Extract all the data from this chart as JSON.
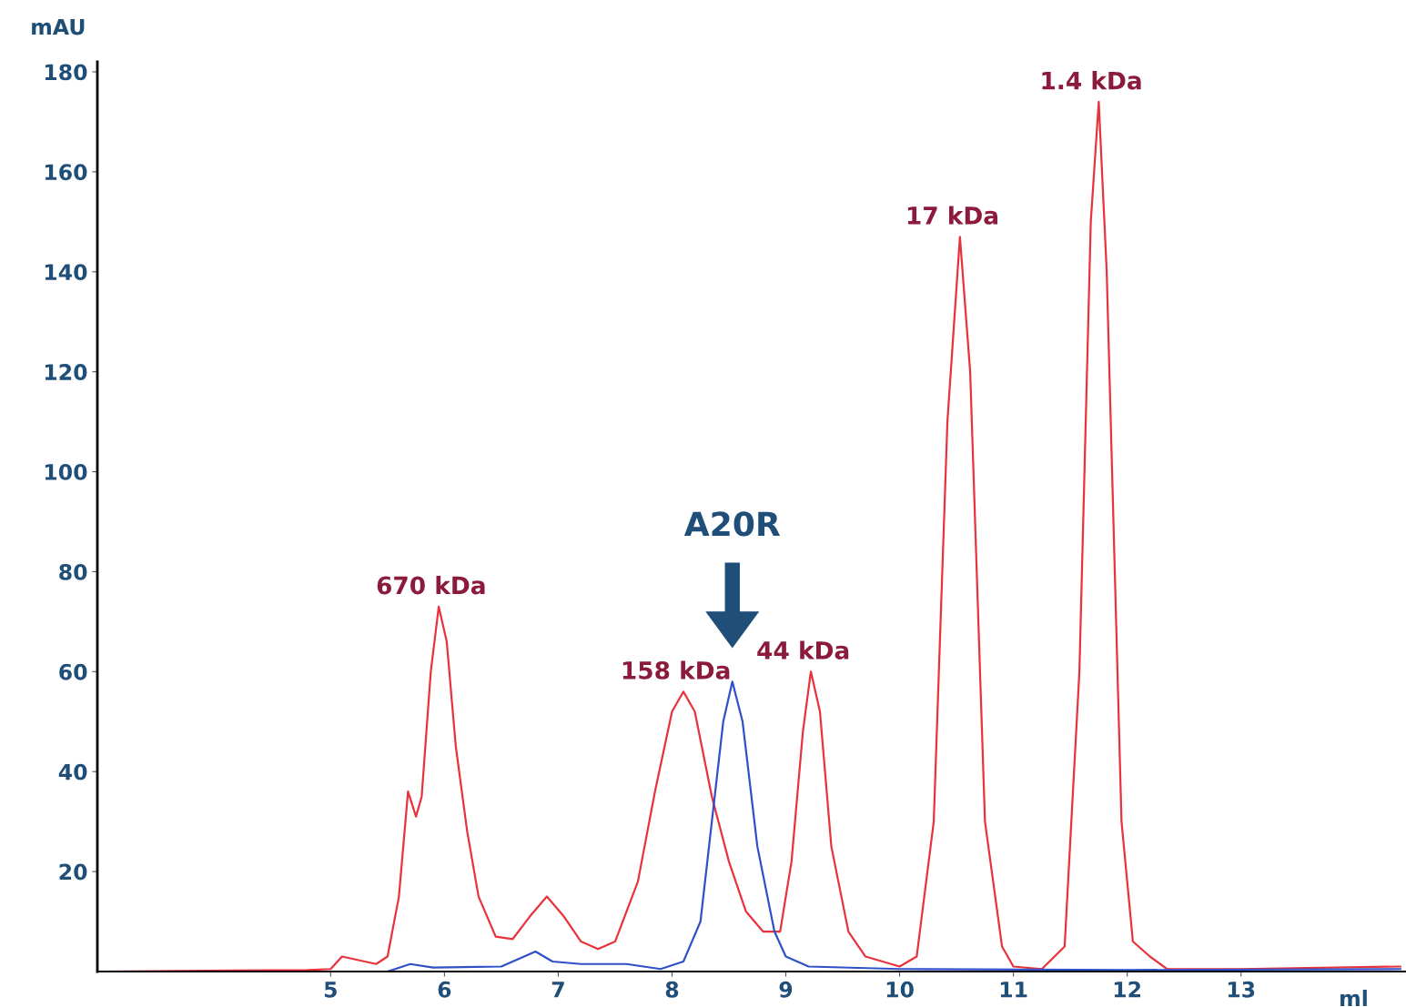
{
  "chart_data": {
    "type": "line",
    "xlabel": "ml",
    "ylabel": "mAU",
    "xlim": [
      2.95,
      14.45
    ],
    "xticks": [
      5,
      6,
      7,
      8,
      9,
      10,
      11,
      12,
      13
    ],
    "ylim": [
      0,
      182
    ],
    "yticks": [
      20,
      40,
      60,
      80,
      100,
      120,
      140,
      160,
      180
    ],
    "grid": false,
    "legend": false,
    "marker": "none",
    "line_style": "solid",
    "series": [
      {
        "color": "#e8323c",
        "x": [
          3.0,
          4.8,
          5.0,
          5.1,
          5.2,
          5.4,
          5.5,
          5.6,
          5.68,
          5.75,
          5.8,
          5.88,
          5.95,
          6.02,
          6.1,
          6.2,
          6.3,
          6.45,
          6.6,
          6.75,
          6.9,
          7.05,
          7.2,
          7.35,
          7.5,
          7.7,
          7.85,
          8.0,
          8.1,
          8.2,
          8.35,
          8.5,
          8.65,
          8.8,
          8.95,
          9.05,
          9.15,
          9.22,
          9.3,
          9.4,
          9.55,
          9.7,
          9.85,
          10.0,
          10.15,
          10.3,
          10.42,
          10.53,
          10.62,
          10.75,
          10.9,
          11.0,
          11.25,
          11.45,
          11.58,
          11.68,
          11.75,
          11.82,
          11.95,
          12.05,
          12.2,
          12.35,
          13.0,
          14.4
        ],
        "values": [
          0,
          0.3,
          0.5,
          3,
          2.5,
          1.5,
          3,
          15,
          36,
          31,
          35,
          60,
          73,
          66,
          45,
          28,
          15,
          7,
          6.5,
          11,
          15,
          11,
          6,
          4.5,
          6,
          18,
          36,
          52,
          56,
          52,
          35,
          22,
          12,
          8,
          8,
          22,
          48,
          60,
          52,
          25,
          8,
          3,
          2,
          1,
          3,
          30,
          110,
          147,
          120,
          30,
          5,
          1,
          0.5,
          5,
          60,
          150,
          174,
          140,
          30,
          6,
          3,
          0.5,
          0.5,
          1
        ]
      },
      {
        "color": "#3050c8",
        "x": [
          3.0,
          5.5,
          5.7,
          5.9,
          6.5,
          6.7,
          6.8,
          6.95,
          7.2,
          7.6,
          7.9,
          8.1,
          8.25,
          8.35,
          8.45,
          8.53,
          8.62,
          8.75,
          8.9,
          9.0,
          9.2,
          10.0,
          12.0,
          14.4
        ],
        "values": [
          0,
          0,
          1.5,
          0.8,
          1,
          3,
          4,
          2,
          1.5,
          1.5,
          0.5,
          2,
          10,
          30,
          50,
          58,
          50,
          25,
          8,
          3,
          1,
          0.5,
          0.3,
          0.5
        ]
      }
    ],
    "annotations": [
      {
        "text": "670 kDa",
        "x": 5.95,
        "y": 73
      },
      {
        "text": "158 kDa",
        "x": 8.1,
        "y": 56
      },
      {
        "text": "44 kDa",
        "x": 9.22,
        "y": 60
      },
      {
        "text": "17 kDa",
        "x": 10.53,
        "y": 147
      },
      {
        "text": "1.4 kDa",
        "x": 11.75,
        "y": 174
      },
      "A20R"
    ]
  }
}
